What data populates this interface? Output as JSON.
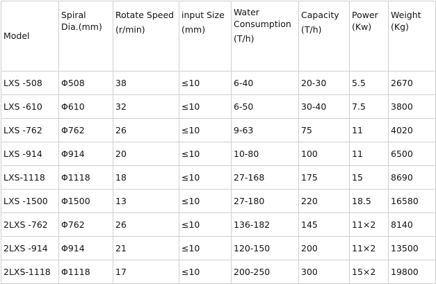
{
  "table": {
    "headers": {
      "model": "Model",
      "spiral_l1": "Spiral",
      "spiral_l2": "Dia.(mm)",
      "rotate_l1": "Rotate Speed",
      "rotate_l2": "(r/min)",
      "input_l1": "input Size",
      "input_l2": "(mm)",
      "water_l1": "Water",
      "water_l2": "Consumption",
      "water_l3": "(T/h)",
      "capacity_l1": "Capacity",
      "capacity_l2": "(T/h)",
      "power_l1": "Power",
      "power_l2": "(Kw)",
      "weight_l1": "Weight",
      "weight_l2": "(Kg)"
    },
    "rows": [
      [
        "LXS -508",
        "Φ508",
        "38",
        "≤10",
        "6-40",
        "20-30",
        "5.5",
        "2670"
      ],
      [
        "LXS -610",
        "Φ610",
        "32",
        "≤10",
        "6-50",
        "30-40",
        "7.5",
        "3800"
      ],
      [
        "LXS -762",
        "Φ762",
        "26",
        "≤10",
        "9-63",
        "75",
        "11",
        "4020"
      ],
      [
        "LXS -914",
        "Φ914",
        "20",
        "≤10",
        "10-80",
        "100",
        "11",
        "6500"
      ],
      [
        "LXS-1118",
        "Φ1118",
        "18",
        "≤10",
        "27-168",
        "175",
        "15",
        "8690"
      ],
      [
        "LXS -1500",
        "Φ1500",
        "13",
        "≤10",
        "27-180",
        "220",
        "18.5",
        "16580"
      ],
      [
        "2LXS -762",
        "Φ762",
        "26",
        "≤10",
        "136-182",
        "145",
        "11×2",
        "8140"
      ],
      [
        "2LXS -914",
        "Φ914",
        "21",
        "≤10",
        "120-150",
        "200",
        "11×2",
        "13500"
      ],
      [
        "2LXS-1118",
        "Φ1118",
        "17",
        "≤10",
        "200-250",
        "300",
        "15×2",
        "19800"
      ]
    ]
  }
}
